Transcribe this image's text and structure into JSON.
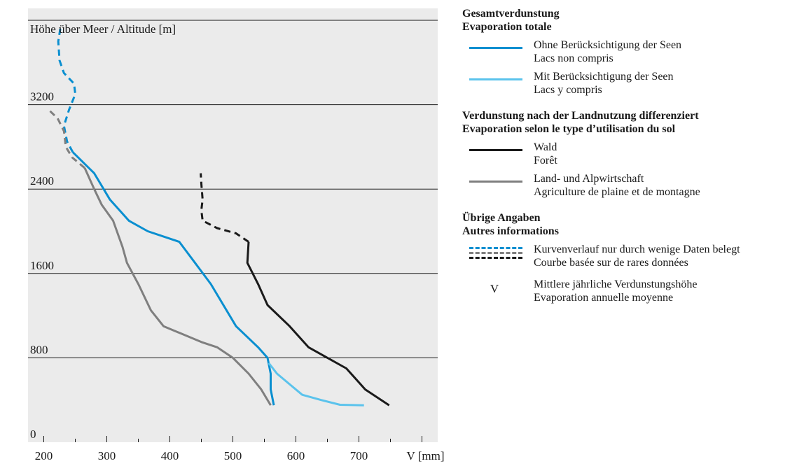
{
  "chart_data": {
    "type": "line",
    "ylabel": "Höhe über Meer / Altitude [m]",
    "xlabel": "V [mm]",
    "xlim": [
      175,
      825
    ],
    "ylim": [
      0,
      4000
    ],
    "xticks": [
      200,
      300,
      400,
      500,
      600,
      700
    ],
    "xtick_labels": [
      "200",
      "300",
      "400",
      "500",
      "600",
      "700"
    ],
    "yticks": [
      0,
      800,
      1600,
      2400,
      3200
    ],
    "ytick_labels": [
      "0",
      "800",
      "1600",
      "2400",
      "3200"
    ],
    "grid_y": [
      800,
      1600,
      2400,
      3200,
      4000
    ],
    "series": [
      {
        "name": "Ohne Berücksichtigung der Seen / Lacs non compris",
        "color": "#0a8fd0",
        "style": "solid",
        "points": [
          [
            246,
            2750
          ],
          [
            280,
            2550
          ],
          [
            305,
            2300
          ],
          [
            335,
            2100
          ],
          [
            365,
            2000
          ],
          [
            415,
            1900
          ],
          [
            440,
            1700
          ],
          [
            465,
            1500
          ],
          [
            505,
            1100
          ],
          [
            540,
            900
          ],
          [
            555,
            800
          ],
          [
            560,
            650
          ],
          [
            560,
            500
          ],
          [
            565,
            350
          ]
        ]
      },
      {
        "name": "Ohne Berücksichtigung der Seen / Lacs non compris (wenige Daten)",
        "color": "#0a8fd0",
        "style": "dashed",
        "points": [
          [
            246,
            2750
          ],
          [
            237,
            2850
          ],
          [
            232,
            3000
          ],
          [
            240,
            3150
          ],
          [
            250,
            3300
          ],
          [
            248,
            3400
          ],
          [
            232,
            3500
          ],
          [
            225,
            3620
          ],
          [
            223,
            3800
          ],
          [
            227,
            3950
          ]
        ]
      },
      {
        "name": "Mit Berücksichtigung der Seen / Lacs y compris",
        "color": "#5bc3ec",
        "style": "solid",
        "points": [
          [
            557,
            750
          ],
          [
            570,
            650
          ],
          [
            590,
            550
          ],
          [
            610,
            450
          ],
          [
            640,
            400
          ],
          [
            670,
            355
          ],
          [
            708,
            350
          ]
        ]
      },
      {
        "name": "Wald / Forêt",
        "color": "#1a1a1a",
        "style": "solid",
        "points": [
          [
            525,
            1900
          ],
          [
            523,
            1700
          ],
          [
            540,
            1500
          ],
          [
            555,
            1300
          ],
          [
            590,
            1100
          ],
          [
            620,
            900
          ],
          [
            680,
            700
          ],
          [
            710,
            500
          ],
          [
            748,
            350
          ]
        ]
      },
      {
        "name": "Wald / Forêt (wenige Daten)",
        "color": "#1a1a1a",
        "style": "dashed",
        "points": [
          [
            525,
            1900
          ],
          [
            505,
            1980
          ],
          [
            475,
            2030
          ],
          [
            452,
            2100
          ],
          [
            450,
            2200
          ],
          [
            452,
            2300
          ],
          [
            450,
            2450
          ],
          [
            449,
            2550
          ]
        ]
      },
      {
        "name": "Land- und Alpwirtschaft / Agriculture de plaine et de montagne",
        "color": "#7f7f7f",
        "style": "solid",
        "points": [
          [
            265,
            2600
          ],
          [
            280,
            2400
          ],
          [
            292,
            2250
          ],
          [
            310,
            2100
          ],
          [
            325,
            1850
          ],
          [
            332,
            1700
          ],
          [
            350,
            1500
          ],
          [
            370,
            1250
          ],
          [
            390,
            1100
          ],
          [
            450,
            950
          ],
          [
            475,
            900
          ],
          [
            500,
            800
          ],
          [
            525,
            650
          ],
          [
            545,
            500
          ],
          [
            560,
            350
          ]
        ]
      },
      {
        "name": "Land- und Alpwirtschaft / Agriculture de plaine et de montagne (wenige Daten)",
        "color": "#7f7f7f",
        "style": "dashed",
        "points": [
          [
            265,
            2600
          ],
          [
            245,
            2700
          ],
          [
            235,
            2800
          ],
          [
            232,
            2950
          ],
          [
            222,
            3070
          ],
          [
            208,
            3150
          ]
        ]
      }
    ]
  },
  "legend": {
    "total": {
      "heading_de": "Gesamtverdunstung",
      "heading_fr": "Evaporation totale",
      "items": [
        {
          "de": "Ohne Berücksichtigung der Seen",
          "fr": "Lacs non compris",
          "color": "#0a8fd0"
        },
        {
          "de": "Mit Berücksichtigung der Seen",
          "fr": "Lacs y compris",
          "color": "#5bc3ec"
        }
      ]
    },
    "landuse": {
      "heading_de": "Verdunstung nach der Landnutzung differenziert",
      "heading_fr": "Evaporation selon le type d’utilisation du sol",
      "items": [
        {
          "de": "Wald",
          "fr": "Forêt",
          "color": "#1a1a1a"
        },
        {
          "de": "Land- und Alpwirtschaft",
          "fr": "Agriculture de plaine et de montagne",
          "color": "#7f7f7f"
        }
      ]
    },
    "other": {
      "heading_de": "Übrige Angaben",
      "heading_fr": "Autres informations",
      "dashed_de": "Kurvenverlauf nur durch wenige Daten belegt",
      "dashed_fr": "Courbe basée sur de rares données",
      "symbol": "V",
      "symbol_de": "Mittlere jährliche Verdunstungshöhe",
      "symbol_fr": "Evaporation annuelle moyenne"
    }
  },
  "colors": {
    "plot_background": "#ebebeb",
    "gridline": "#1a1a1a"
  }
}
